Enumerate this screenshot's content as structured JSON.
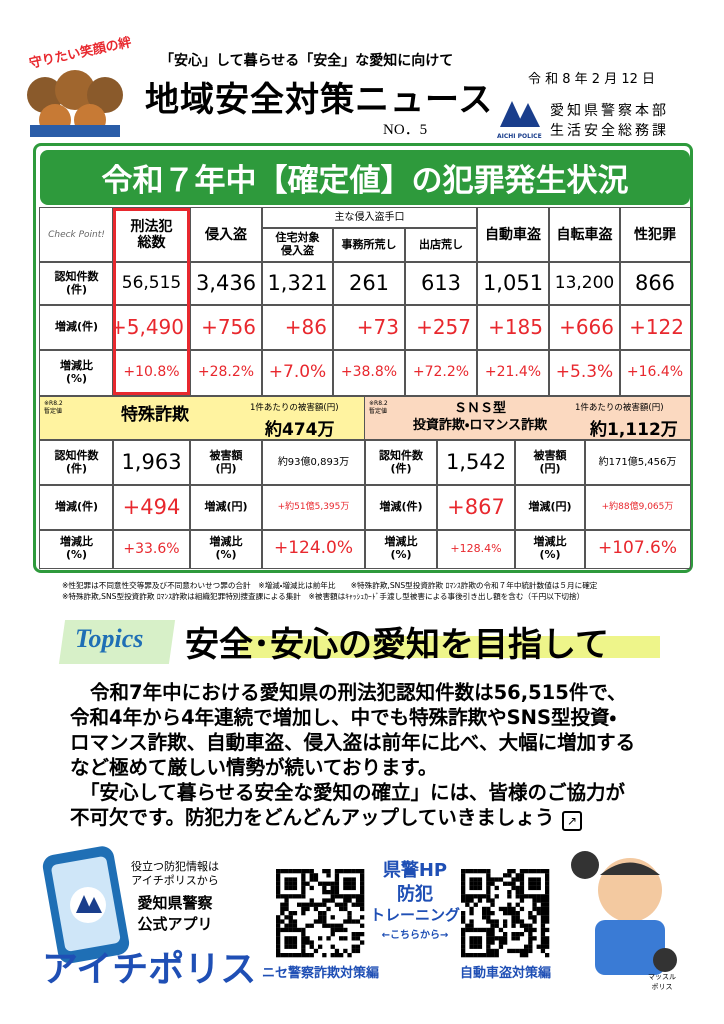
{
  "header": {
    "badge": "守りたい笑顔の絆",
    "subtitle": "「安心」して暮らせる「安全」な愛知に向けて",
    "title": "地域安全対策ニュース",
    "issue": "NO．5",
    "date": "令 和 8 年 2 月 12 日",
    "logo": "AICHI POLICE",
    "org": [
      "愛知県警察本部",
      "生活安全総務課"
    ]
  },
  "banner": "令和７年中【確定値】の犯罪発生状況",
  "crime_table": {
    "corner": "Check Point!",
    "group_label": "主な侵入盗手口",
    "columns": [
      "刑法犯\n総数",
      "侵入盗",
      "住宅対象\n侵入盗",
      "事務所荒し",
      "出店荒し",
      "自動車盗",
      "自転車盗",
      "性犯罪"
    ],
    "rows": [
      {
        "label": "認知件数\n(件)",
        "cells": [
          "56,515",
          "3,436",
          "1,321",
          "261",
          "613",
          "1,051",
          "13,200",
          "866"
        ]
      },
      {
        "label": "増減(件)",
        "cells": [
          "+5,490",
          "+756",
          "+86",
          "+73",
          "+257",
          "+185",
          "+666",
          "+122"
        ]
      },
      {
        "label": "増減比\n(%)",
        "cells": [
          "+10.8%",
          "+28.2%",
          "+7.0%",
          "+38.8%",
          "+72.2%",
          "+21.4%",
          "+5.3%",
          "+16.4%"
        ]
      }
    ]
  },
  "fraud": [
    {
      "note": "※R8.2\n暫定値",
      "title": "特殊詐欺",
      "per_case_label": "1件あたりの被害額(円)",
      "per_case_value": "約474万",
      "rows": [
        {
          "label": "認知件数\n(件)",
          "value": "1,963",
          "label2": "被害額\n(円)",
          "value2": "約93億0,893万"
        },
        {
          "label": "増減(件)",
          "value": "+494",
          "label2": "増減(円)",
          "value2": "+約51億5,395万"
        },
        {
          "label": "増減比\n(%)",
          "value": "+33.6%",
          "label2": "増減比\n(%)",
          "value2": "+124.0%"
        }
      ]
    },
    {
      "note": "※R8.2\n暫定値",
      "title": "ＳＮＳ型\n投資詐欺・ロマンス詐欺",
      "per_case_label": "1件あたりの被害額(円)",
      "per_case_value": "約1,112万",
      "rows": [
        {
          "label": "認知件数\n(件)",
          "value": "1,542",
          "label2": "被害額\n(円)",
          "value2": "約171億5,456万"
        },
        {
          "label": "増減(件)",
          "value": "+867",
          "label2": "増減(円)",
          "value2": "+約88億9,065万"
        },
        {
          "label": "増減比\n(%)",
          "value": "+128.4%",
          "label2": "増減比\n(%)",
          "value2": "+107.6%"
        }
      ]
    }
  ],
  "footnotes": [
    "※性犯罪は不同意性交等罪及び不同意わいせつ罪の合計　※増減・増減比は前年比　　※特殊詐欺,SNS型投資詐欺 ﾛﾏﾝｽ詐欺の令和７年中統計数値は５月に確定",
    "※特殊詐欺,SNS型投資詐欺 ﾛﾏﾝｽ詐欺は組織犯罪特別捜査課による集計　※被害額はｷｬｯｼｭｶｰﾄﾞ手渡し型被害による事後引き出し額を含む（千円以下切捨）"
  ],
  "topics": {
    "tag": "Topics",
    "headline": "安全･安心の愛知を目指して",
    "lines": [
      "令和7年中における愛知県の刑法犯認知件数は56,515件で、",
      "令和4年から4年連続で増加し、中でも特殊詐欺やSNS型投資・",
      "ロマンス詐欺、自動車盗、侵入盗は前年に比べ、大幅に増加する",
      "など極めて厳しい情勢が続いております。",
      "「安心して暮らせる安全な愛知の確立」には、皆様のご協力が",
      "不可欠です。防犯力をどんどんアップしていきましょう"
    ]
  },
  "footer": {
    "app_lines": [
      "役立つ防犯情報は",
      "アイチポリスから"
    ],
    "app_owner": "愛知県警察\n公式アプリ",
    "app_name": "アイチポリス",
    "hp": "県警HP",
    "training": [
      "防犯",
      "トレーニング"
    ],
    "arrow": "←こちらから→",
    "qr_left": "ニセ警察詐欺対策編",
    "qr_right": "自動車盗対策編",
    "mascot": "マッスル\nポリス"
  }
}
